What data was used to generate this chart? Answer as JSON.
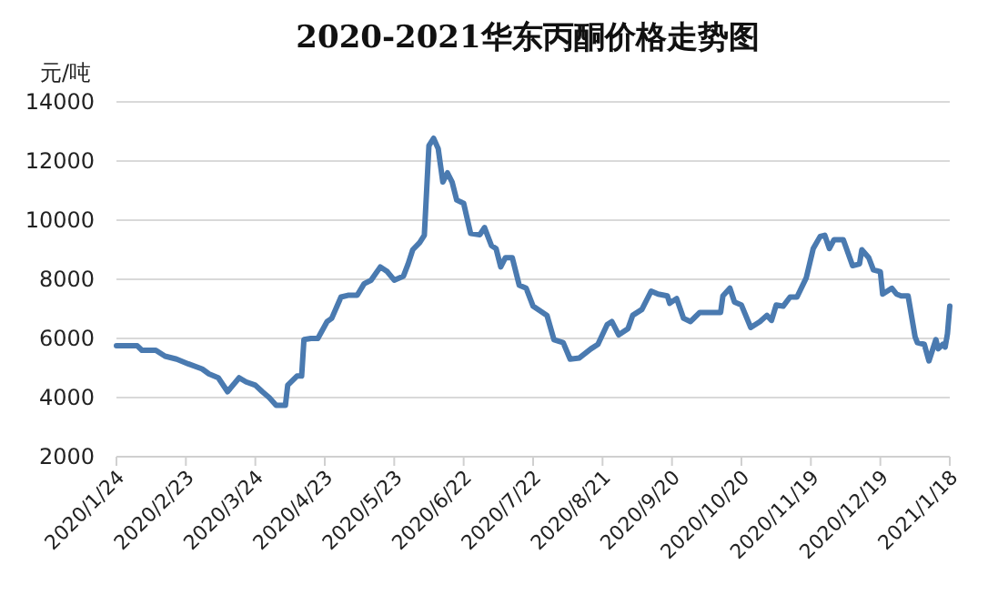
{
  "chart_data": {
    "type": "line",
    "title": "2020-2021华东丙酮价格走势图",
    "ylabel": "元/吨",
    "color": "#4a7ab0",
    "grid": "y",
    "xlim": [
      "2020-01-24",
      "2021-01-18"
    ],
    "ylim": [
      2000,
      14000
    ],
    "yticks": [
      2000,
      4000,
      6000,
      8000,
      10000,
      12000,
      14000
    ],
    "xticks": [
      {
        "value": "2020-01-24",
        "label": "2020/1/24"
      },
      {
        "value": "2020-02-23",
        "label": "2020/2/23"
      },
      {
        "value": "2020-03-24",
        "label": "2020/3/24"
      },
      {
        "value": "2020-04-23",
        "label": "2020/4/23"
      },
      {
        "value": "2020-05-23",
        "label": "2020/5/23"
      },
      {
        "value": "2020-06-22",
        "label": "2020/6/22"
      },
      {
        "value": "2020-07-22",
        "label": "2020/7/22"
      },
      {
        "value": "2020-08-21",
        "label": "2020/8/21"
      },
      {
        "value": "2020-09-20",
        "label": "2020/9/20"
      },
      {
        "value": "2020-10-20",
        "label": "2020/10/20"
      },
      {
        "value": "2020-11-19",
        "label": "2020/11/19"
      },
      {
        "value": "2020-12-19",
        "label": "2020/12/19"
      },
      {
        "value": "2021-01-18",
        "label": "2021/1/18"
      }
    ],
    "x": [
      "2020-01-24",
      "2020-02-02",
      "2020-02-04",
      "2020-02-10",
      "2020-02-14",
      "2020-02-19",
      "2020-02-24",
      "2020-03-01",
      "2020-03-04",
      "2020-03-08",
      "2020-03-12",
      "2020-03-17",
      "2020-03-20",
      "2020-03-24",
      "2020-03-27",
      "2020-03-30",
      "2020-04-02",
      "2020-04-06",
      "2020-04-07",
      "2020-04-11",
      "2020-04-13",
      "2020-04-14",
      "2020-04-17",
      "2020-04-20",
      "2020-04-24",
      "2020-04-26",
      "2020-04-30",
      "2020-05-03",
      "2020-05-07",
      "2020-05-10",
      "2020-05-13",
      "2020-05-17",
      "2020-05-20",
      "2020-05-23",
      "2020-05-27",
      "2020-05-29",
      "2020-05-31",
      "2020-06-03",
      "2020-06-05",
      "2020-06-07",
      "2020-06-09",
      "2020-06-11",
      "2020-06-13",
      "2020-06-15",
      "2020-06-17",
      "2020-06-19",
      "2020-06-22",
      "2020-06-25",
      "2020-06-29",
      "2020-07-01",
      "2020-07-04",
      "2020-07-06",
      "2020-07-08",
      "2020-07-10",
      "2020-07-13",
      "2020-07-16",
      "2020-07-19",
      "2020-07-22",
      "2020-07-28",
      "2020-07-31",
      "2020-08-04",
      "2020-08-07",
      "2020-08-11",
      "2020-08-16",
      "2020-08-19",
      "2020-08-23",
      "2020-08-25",
      "2020-08-28",
      "2020-09-01",
      "2020-09-03",
      "2020-09-07",
      "2020-09-11",
      "2020-09-14",
      "2020-09-18",
      "2020-09-19",
      "2020-09-22",
      "2020-09-25",
      "2020-09-28",
      "2020-10-02",
      "2020-10-11",
      "2020-10-12",
      "2020-10-15",
      "2020-10-17",
      "2020-10-20",
      "2020-10-24",
      "2020-10-28",
      "2020-10-31",
      "2020-11-02",
      "2020-11-04",
      "2020-11-07",
      "2020-11-10",
      "2020-11-13",
      "2020-11-17",
      "2020-11-20",
      "2020-11-23",
      "2020-11-25",
      "2020-11-27",
      "2020-11-29",
      "2020-12-03",
      "2020-12-07",
      "2020-12-10",
      "2020-12-11",
      "2020-12-14",
      "2020-12-16",
      "2020-12-19",
      "2020-12-20",
      "2020-12-24",
      "2020-12-26",
      "2020-12-28",
      "2020-12-31",
      "2021-01-03",
      "2021-01-04",
      "2021-01-07",
      "2021-01-09",
      "2021-01-12",
      "2021-01-13",
      "2021-01-15",
      "2021-01-16",
      "2021-01-17",
      "2021-01-18"
    ],
    "values": [
      5750,
      5750,
      5600,
      5600,
      5400,
      5300,
      5140,
      4970,
      4800,
      4670,
      4200,
      4670,
      4530,
      4420,
      4200,
      4000,
      3740,
      3740,
      4420,
      4730,
      4730,
      5960,
      6000,
      6000,
      6570,
      6680,
      7400,
      7460,
      7460,
      7850,
      7970,
      8420,
      8260,
      7970,
      8110,
      8520,
      9000,
      9240,
      9490,
      12520,
      12770,
      12420,
      11290,
      11600,
      11290,
      10680,
      10570,
      9550,
      9510,
      9750,
      9140,
      9040,
      8420,
      8730,
      8730,
      7800,
      7700,
      7090,
      6780,
      5960,
      5860,
      5300,
      5340,
      5650,
      5800,
      6470,
      6570,
      6120,
      6330,
      6780,
      6980,
      7600,
      7500,
      7440,
      7190,
      7350,
      6680,
      6570,
      6880,
      6880,
      7440,
      7700,
      7230,
      7130,
      6370,
      6570,
      6780,
      6610,
      7130,
      7090,
      7400,
      7400,
      8050,
      9040,
      9450,
      9490,
      9040,
      9340,
      9340,
      8460,
      8520,
      9000,
      8730,
      8320,
      8260,
      7500,
      7700,
      7500,
      7440,
      7440,
      6060,
      5860,
      5800,
      5240,
      5960,
      5650,
      5800,
      5710,
      6160,
      7090
    ]
  }
}
